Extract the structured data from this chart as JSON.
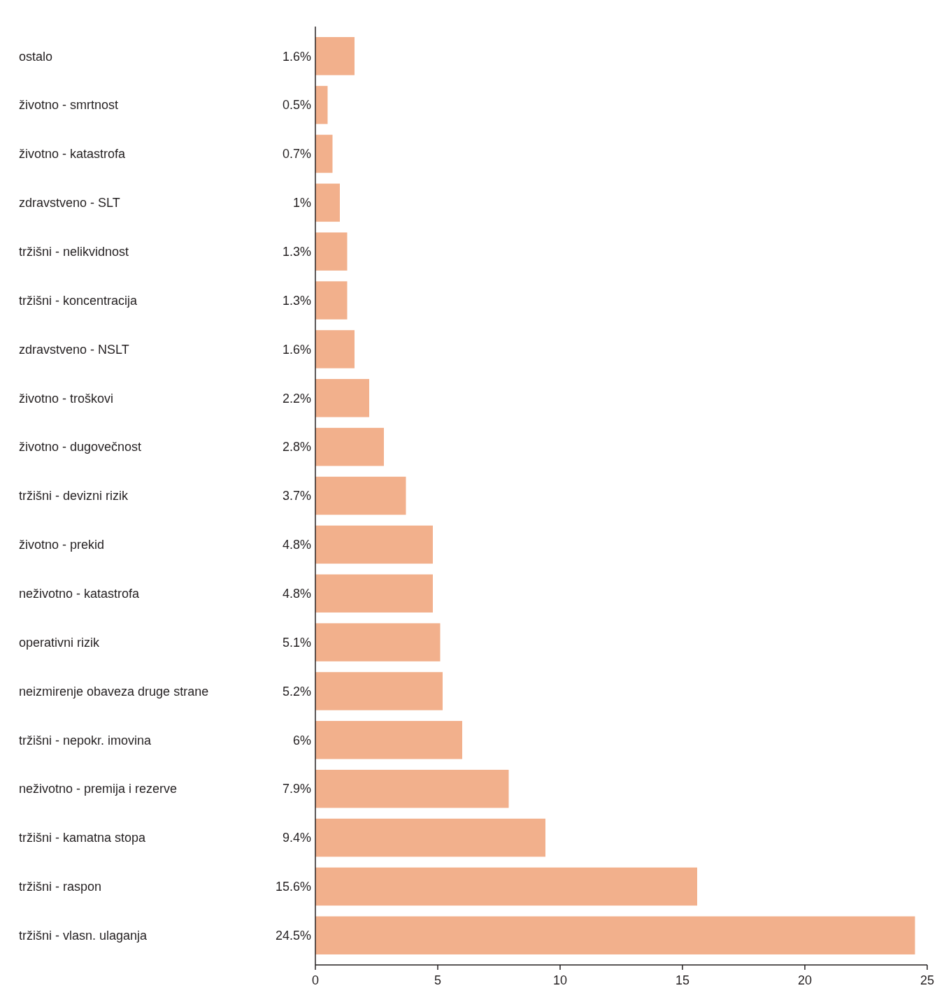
{
  "chart_data": {
    "type": "bar",
    "orientation": "horizontal",
    "categories": [
      "ostalo",
      "životno - smrtnost",
      "životno - katastrofa",
      "zdravstveno - SLT",
      "tržišni - nelikvidnost",
      "tržišni - koncentracija",
      "zdravstveno - NSLT",
      "životno - troškovi",
      "životno - dugovečnost",
      "tržišni - devizni rizik",
      "životno - prekid",
      "neživotno - katastrofa",
      "operativni rizik",
      "neizmirenje obaveza druge strane",
      "tržišni - nepokr. imovina",
      "neživotno - premija i rezerve",
      "tržišni - kamatna stopa",
      "tržišni - raspon",
      "tržišni - vlasn. ulaganja"
    ],
    "values": [
      1.6,
      0.5,
      0.7,
      1,
      1.3,
      1.3,
      1.6,
      2.2,
      2.8,
      3.7,
      4.8,
      4.8,
      5.1,
      5.2,
      6,
      7.9,
      9.4,
      15.6,
      24.5
    ],
    "value_labels": [
      "1.6%",
      "0.5%",
      "0.7%",
      "1%",
      "1.3%",
      "1.3%",
      "1.6%",
      "2.2%",
      "2.8%",
      "3.7%",
      "4.8%",
      "4.8%",
      "5.1%",
      "5.2%",
      "6%",
      "7.9%",
      "9.4%",
      "15.6%",
      "24.5%"
    ],
    "color": "#f2b08c",
    "xlim": [
      0,
      25
    ],
    "xticks": [
      0,
      5,
      10,
      15,
      20,
      25
    ],
    "grid": false
  }
}
